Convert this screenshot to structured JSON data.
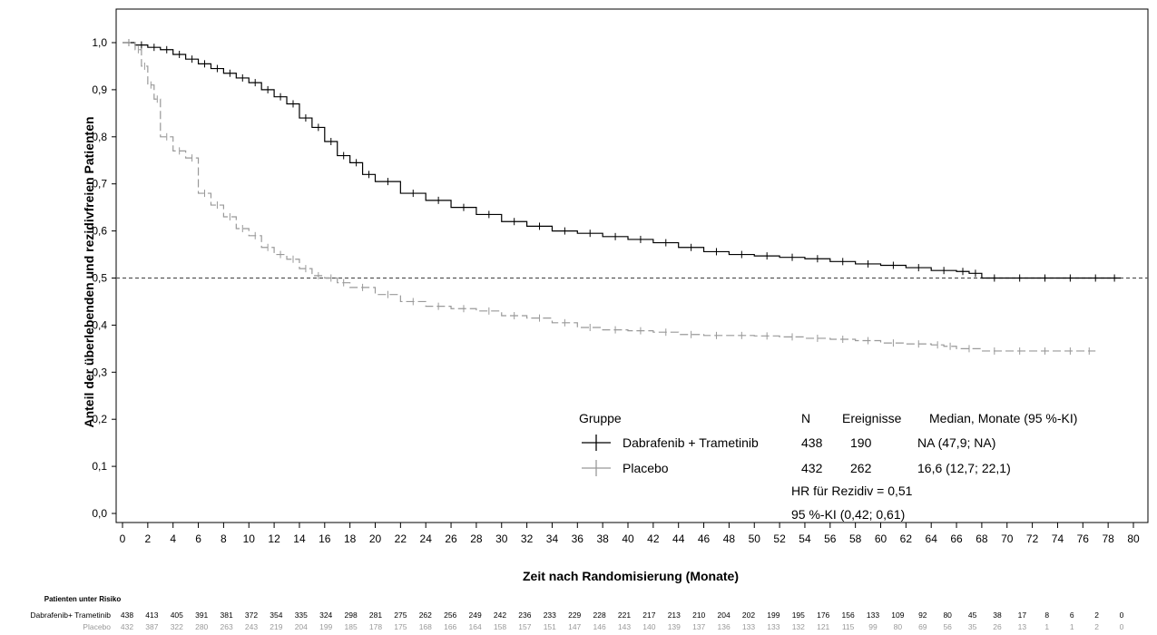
{
  "chart_data": {
    "type": "line",
    "subtype": "kaplan-meier",
    "title": "",
    "xlabel": "Zeit nach Randomisierung (Monate)",
    "ylabel": "Anteil der überlebenden und rezidivfreien Patienten",
    "xlim": [
      0,
      80
    ],
    "ylim": [
      0,
      1.0
    ],
    "x_ticks": [
      "0",
      "2",
      "4",
      "6",
      "8",
      "10",
      "12",
      "14",
      "16",
      "18",
      "20",
      "22",
      "24",
      "26",
      "28",
      "30",
      "32",
      "34",
      "36",
      "38",
      "40",
      "42",
      "44",
      "46",
      "48",
      "50",
      "52",
      "54",
      "56",
      "58",
      "60",
      "62",
      "64",
      "66",
      "68",
      "70",
      "72",
      "74",
      "76",
      "78",
      "80"
    ],
    "y_ticks": [
      "0,0",
      "0,1",
      "0,2",
      "0,3",
      "0,4",
      "0,5",
      "0,6",
      "0,7",
      "0,8",
      "0,9",
      "1,0"
    ],
    "reference_line": {
      "y": 0.5,
      "style": "dashed"
    },
    "colors": {
      "dabrafenib": "#000000",
      "placebo": "#999999"
    },
    "series": [
      {
        "name": "Dabrafenib + Trametinib",
        "style": "solid",
        "color": "#000000",
        "x": [
          0,
          1,
          2,
          3,
          4,
          5,
          6,
          7,
          8,
          9,
          10,
          11,
          12,
          13,
          14,
          15,
          16,
          17,
          18,
          19,
          20,
          22,
          24,
          26,
          28,
          30,
          32,
          34,
          36,
          38,
          40,
          42,
          44,
          46,
          48,
          50,
          52,
          54,
          56,
          58,
          60,
          62,
          64,
          66,
          67,
          68,
          70,
          72,
          74,
          76,
          78,
          79
        ],
        "y": [
          1.0,
          0.995,
          0.99,
          0.985,
          0.975,
          0.965,
          0.955,
          0.945,
          0.935,
          0.925,
          0.915,
          0.9,
          0.885,
          0.87,
          0.84,
          0.82,
          0.79,
          0.76,
          0.745,
          0.72,
          0.705,
          0.68,
          0.665,
          0.65,
          0.635,
          0.62,
          0.61,
          0.6,
          0.595,
          0.588,
          0.582,
          0.575,
          0.565,
          0.556,
          0.55,
          0.547,
          0.544,
          0.541,
          0.535,
          0.53,
          0.527,
          0.522,
          0.516,
          0.514,
          0.51,
          0.5,
          0.5,
          0.5,
          0.5,
          0.5,
          0.5,
          0.5
        ]
      },
      {
        "name": "Placebo",
        "style": "dashed",
        "color": "#999999",
        "x": [
          0,
          1,
          1.5,
          2,
          2.5,
          3,
          4,
          5,
          6,
          7,
          8,
          9,
          10,
          11,
          12,
          13,
          14,
          15,
          16,
          17,
          18,
          20,
          22,
          24,
          26,
          28,
          30,
          32,
          34,
          36,
          38,
          40,
          42,
          44,
          46,
          48,
          50,
          52,
          54,
          56,
          58,
          60,
          62,
          64,
          65,
          66,
          68,
          70,
          72,
          74,
          76,
          77
        ],
        "y": [
          1.0,
          0.985,
          0.95,
          0.91,
          0.88,
          0.8,
          0.77,
          0.755,
          0.68,
          0.655,
          0.63,
          0.605,
          0.59,
          0.565,
          0.55,
          0.54,
          0.52,
          0.505,
          0.5,
          0.49,
          0.48,
          0.465,
          0.45,
          0.44,
          0.435,
          0.43,
          0.42,
          0.415,
          0.405,
          0.395,
          0.39,
          0.388,
          0.385,
          0.38,
          0.378,
          0.378,
          0.377,
          0.375,
          0.372,
          0.37,
          0.367,
          0.362,
          0.36,
          0.358,
          0.355,
          0.35,
          0.345,
          0.345,
          0.345,
          0.345,
          0.345,
          0.345
        ]
      }
    ],
    "legend": {
      "position": "bottom-right",
      "header_group": "Gruppe",
      "header_n": "N",
      "header_events": "Ereignisse",
      "header_median": "Median, Monate (95 %-KI)",
      "rows": [
        {
          "label": "Dabrafenib + Trametinib",
          "n": "438",
          "events": "190",
          "median": "NA (47,9; NA)"
        },
        {
          "label": "Placebo",
          "n": "432",
          "events": "262",
          "median": "16,6 (12,7; 22,1)"
        }
      ],
      "hr_text": "HR für Rezidiv = 0,51",
      "ci_text": "95 %-KI (0,42; 0,61)"
    },
    "risk_table": {
      "title": "Patienten unter Risiko",
      "rows": [
        {
          "label": "Dabrafenib+ Trametinib",
          "color": "#000000",
          "values": [
            "438",
            "413",
            "405",
            "391",
            "381",
            "372",
            "354",
            "335",
            "324",
            "298",
            "281",
            "275",
            "262",
            "256",
            "249",
            "242",
            "236",
            "233",
            "229",
            "228",
            "221",
            "217",
            "213",
            "210",
            "204",
            "202",
            "199",
            "195",
            "176",
            "156",
            "133",
            "109",
            "92",
            "80",
            "45",
            "38",
            "17",
            "8",
            "6",
            "2",
            "0"
          ]
        },
        {
          "label": "Placebo",
          "color": "#999999",
          "values": [
            "432",
            "387",
            "322",
            "280",
            "263",
            "243",
            "219",
            "204",
            "199",
            "185",
            "178",
            "175",
            "168",
            "166",
            "164",
            "158",
            "157",
            "151",
            "147",
            "146",
            "143",
            "140",
            "139",
            "137",
            "136",
            "133",
            "133",
            "132",
            "121",
            "115",
            "99",
            "80",
            "69",
            "56",
            "35",
            "26",
            "13",
            "1",
            "1",
            "2",
            "0"
          ]
        }
      ]
    }
  }
}
